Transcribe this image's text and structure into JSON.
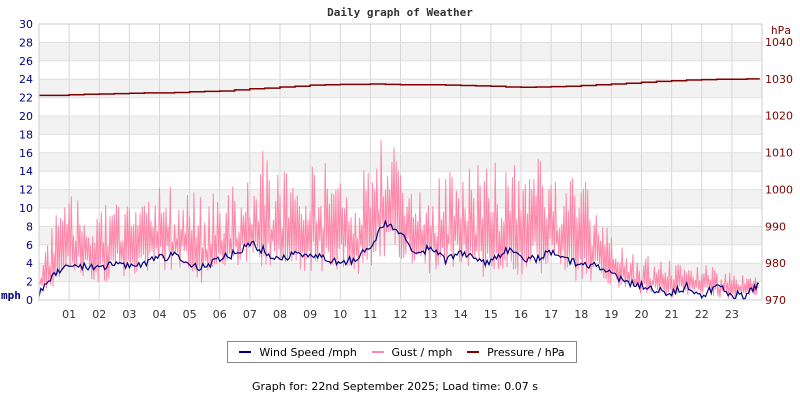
{
  "title": "Daily graph of Weather",
  "legend": [
    {
      "label": "Wind Speed /mph",
      "color": "#00007f"
    },
    {
      "label": "Gust / mph",
      "color": "#ff88aa"
    },
    {
      "label": "Pressure / hPa",
      "color": "#800000"
    }
  ],
  "footer": "Graph for: 22nd September 2025; Load time: 0.07 s",
  "chart_data": {
    "type": "line",
    "title": "Daily graph of Weather",
    "xlabel": "",
    "ylabel_left": "mph",
    "ylabel_right": "hPa",
    "ylim_left": [
      0,
      30
    ],
    "ylim_right": [
      970,
      1040
    ],
    "yticks_left": [
      0,
      2,
      4,
      6,
      8,
      10,
      12,
      14,
      16,
      18,
      20,
      22,
      24,
      26,
      28,
      30
    ],
    "yticks_right": [
      970,
      980,
      990,
      1000,
      1010,
      1020,
      1030,
      1040
    ],
    "xticks": [
      "01",
      "02",
      "03",
      "04",
      "05",
      "06",
      "07",
      "08",
      "09",
      "10",
      "11",
      "12",
      "13",
      "14",
      "15",
      "16",
      "17",
      "18",
      "19",
      "20",
      "21",
      "22",
      "23"
    ],
    "grid": true,
    "legend_position": "bottom",
    "x_hours": [
      0,
      0.5,
      1,
      1.5,
      2,
      2.5,
      3,
      3.5,
      4,
      4.5,
      5,
      5.5,
      6,
      6.5,
      7,
      7.5,
      8,
      8.5,
      9,
      9.5,
      10,
      10.5,
      11,
      11.5,
      12,
      12.5,
      13,
      13.5,
      14,
      14.5,
      15,
      15.5,
      16,
      16.5,
      17,
      17.5,
      18,
      18.5,
      19,
      19.5,
      20,
      20.5,
      21,
      21.5,
      22,
      22.5,
      23,
      23.5,
      23.9
    ],
    "series": [
      {
        "name": "Wind Speed /mph",
        "axis": "left",
        "color": "#00007f",
        "values": [
          0.8,
          3.0,
          3.5,
          3.8,
          3.3,
          4.0,
          3.6,
          4.1,
          4.5,
          4.8,
          4.0,
          3.4,
          4.6,
          5.0,
          6.2,
          5.3,
          4.3,
          5.0,
          4.8,
          4.5,
          3.9,
          4.5,
          5.8,
          8.6,
          7.0,
          5.3,
          5.5,
          4.2,
          5.0,
          4.5,
          4.0,
          5.5,
          4.5,
          4.5,
          5.3,
          4.5,
          3.8,
          4.0,
          2.7,
          2.0,
          1.6,
          1.0,
          0.8,
          1.5,
          0.5,
          1.5,
          0.5,
          0.6,
          1.8
        ]
      },
      {
        "name": "Gust / mph",
        "axis": "left",
        "color": "#ff88aa",
        "values_max": [
          4.5,
          9.3,
          11.5,
          10.5,
          11.5,
          11.5,
          10.5,
          10.5,
          12.5,
          12.5,
          12.5,
          11.5,
          12.5,
          12.5,
          13.0,
          17.0,
          16.0,
          13.5,
          14.5,
          15.0,
          16.0,
          13.5,
          16.0,
          19.6,
          16.0,
          14.5,
          14.0,
          14.0,
          14.5,
          16.0,
          15.0,
          16.0,
          14.0,
          16.0,
          16.0,
          13.0,
          14.0,
          10.5,
          7.0,
          5.5,
          5.0,
          4.5,
          4.5,
          4.0,
          4.0,
          3.5,
          3.5,
          2.5,
          3.5
        ],
        "values_min": [
          0.5,
          1.5,
          2.0,
          2.5,
          1.5,
          2.5,
          2.5,
          3.0,
          3.0,
          3.0,
          3.0,
          1.5,
          3.0,
          3.5,
          4.0,
          3.0,
          2.5,
          3.0,
          3.0,
          3.0,
          2.5,
          2.5,
          3.5,
          4.5,
          4.5,
          3.0,
          2.5,
          2.5,
          3.5,
          2.0,
          2.0,
          3.5,
          2.5,
          2.5,
          3.5,
          3.0,
          1.5,
          2.0,
          1.5,
          1.0,
          0.5,
          0.5,
          0.3,
          0.5,
          0.3,
          0.3,
          0.0,
          0.3,
          0.5
        ]
      },
      {
        "name": "Pressure / hPa",
        "axis": "right",
        "color": "#800000",
        "values": [
          1025.5,
          1025.5,
          1025.7,
          1025.8,
          1025.9,
          1026.0,
          1026.1,
          1026.2,
          1026.2,
          1026.3,
          1026.5,
          1026.6,
          1026.7,
          1027.0,
          1027.3,
          1027.5,
          1027.8,
          1028.0,
          1028.3,
          1028.4,
          1028.5,
          1028.5,
          1028.6,
          1028.5,
          1028.4,
          1028.4,
          1028.4,
          1028.3,
          1028.2,
          1028.1,
          1028.0,
          1027.8,
          1027.7,
          1027.8,
          1027.9,
          1028.0,
          1028.2,
          1028.4,
          1028.6,
          1028.8,
          1029.1,
          1029.3,
          1029.5,
          1029.7,
          1029.8,
          1029.9,
          1029.9,
          1030.0,
          1029.8
        ]
      }
    ]
  }
}
